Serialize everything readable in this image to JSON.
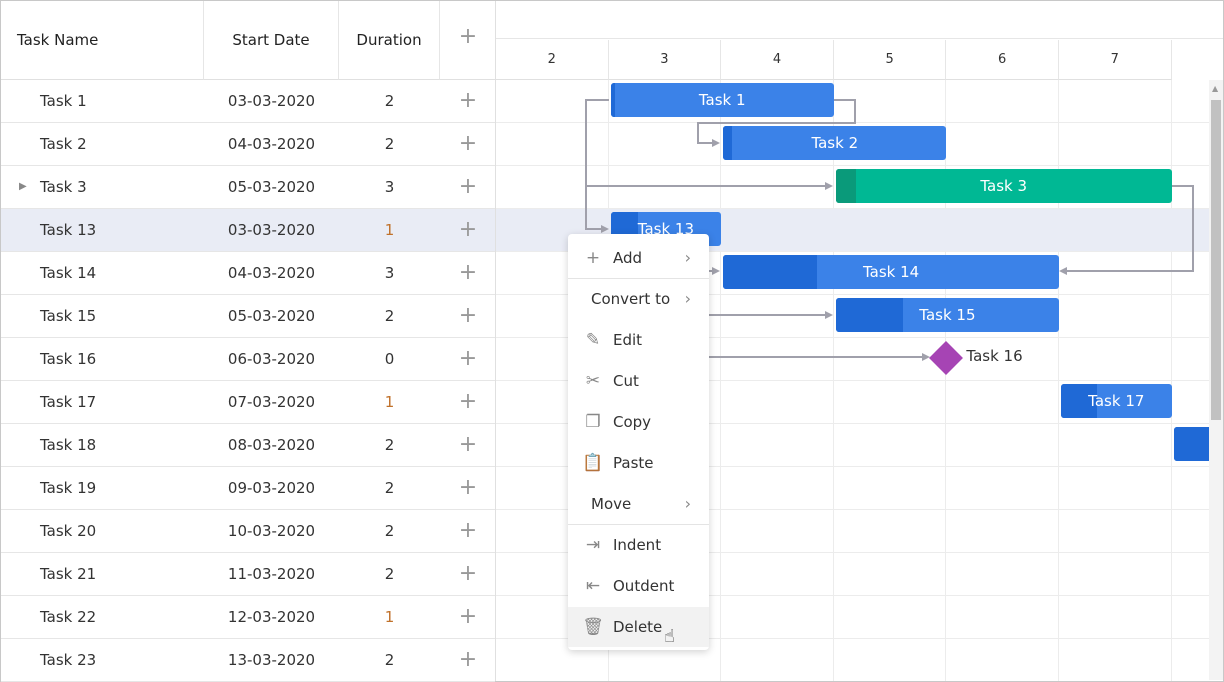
{
  "grid": {
    "headers": {
      "task_name": "Task Name",
      "start_date": "Start Date",
      "duration": "Duration",
      "add": "+"
    },
    "rows": [
      {
        "name": "Task 1",
        "start": "03-03-2020",
        "duration": "2",
        "expand": false
      },
      {
        "name": "Task 2",
        "start": "04-03-2020",
        "duration": "2",
        "expand": false
      },
      {
        "name": "Task 3",
        "start": "05-03-2020",
        "duration": "3",
        "expand": true
      },
      {
        "name": "Task 13",
        "start": "03-03-2020",
        "duration": "1",
        "expand": false,
        "selected": true
      },
      {
        "name": "Task 14",
        "start": "04-03-2020",
        "duration": "3"
      },
      {
        "name": "Task 15",
        "start": "05-03-2020",
        "duration": "2"
      },
      {
        "name": "Task 16",
        "start": "06-03-2020",
        "duration": "0"
      },
      {
        "name": "Task 17",
        "start": "07-03-2020",
        "duration": "1"
      },
      {
        "name": "Task 18",
        "start": "08-03-2020",
        "duration": "2"
      },
      {
        "name": "Task 19",
        "start": "09-03-2020",
        "duration": "2"
      },
      {
        "name": "Task 20",
        "start": "10-03-2020",
        "duration": "2"
      },
      {
        "name": "Task 21",
        "start": "11-03-2020",
        "duration": "2"
      },
      {
        "name": "Task 22",
        "start": "12-03-2020",
        "duration": "1"
      },
      {
        "name": "Task 23",
        "start": "13-03-2020",
        "duration": "2"
      }
    ]
  },
  "timeline": {
    "days": [
      "2",
      "3",
      "4",
      "5",
      "6",
      "7"
    ]
  },
  "bars": [
    {
      "label": "Task 1",
      "start_day": 3,
      "duration": 2,
      "progress": 0.02,
      "row": 0,
      "type": "task"
    },
    {
      "label": "Task 2",
      "start_day": 4,
      "duration": 2,
      "progress": 0.04,
      "row": 1,
      "type": "task"
    },
    {
      "label": "Task 3",
      "start_day": 5,
      "duration": 3,
      "progress": 0.06,
      "row": 2,
      "type": "parent"
    },
    {
      "label": "Task 13",
      "start_day": 3,
      "duration": 1,
      "progress": 0.25,
      "row": 3,
      "type": "task"
    },
    {
      "label": "Task 14",
      "start_day": 4,
      "duration": 3,
      "progress": 0.28,
      "row": 4,
      "type": "task"
    },
    {
      "label": "Task 15",
      "start_day": 5,
      "duration": 2,
      "progress": 0.3,
      "row": 5,
      "type": "task"
    },
    {
      "label": "Task 16",
      "start_day": 6,
      "duration": 0,
      "progress": 0,
      "row": 6,
      "type": "milestone"
    },
    {
      "label": "Task 17",
      "start_day": 7,
      "duration": 1,
      "progress": 0.33,
      "row": 7,
      "type": "task"
    },
    {
      "label": "",
      "start_day": 8,
      "duration": 2,
      "progress": 0.5,
      "row": 8,
      "type": "task"
    }
  ],
  "colors": {
    "bar": "#3b82e8",
    "progress": "#1f69d6",
    "parent": "#00b894",
    "parent_progress": "#0a9a7a",
    "milestone": "#a644b4",
    "selected_row": "#e9ecf5",
    "duration_one": "#c0712a"
  },
  "context_menu": {
    "items": [
      {
        "label": "Add",
        "icon": "plus-icon",
        "submenu": true
      },
      {
        "label": "Convert to",
        "icon": "",
        "submenu": true
      },
      {
        "label": "Edit",
        "icon": "pencil-icon"
      },
      {
        "label": "Cut",
        "icon": "scissors-icon"
      },
      {
        "label": "Copy",
        "icon": "copy-icon"
      },
      {
        "label": "Paste",
        "icon": "clipboard-icon"
      },
      {
        "label": "Move",
        "icon": "",
        "submenu": true
      },
      {
        "label": "Indent",
        "icon": "indent-icon"
      },
      {
        "label": "Outdent",
        "icon": "outdent-icon"
      },
      {
        "label": "Delete",
        "icon": "trash-icon",
        "hovered": true
      }
    ]
  }
}
